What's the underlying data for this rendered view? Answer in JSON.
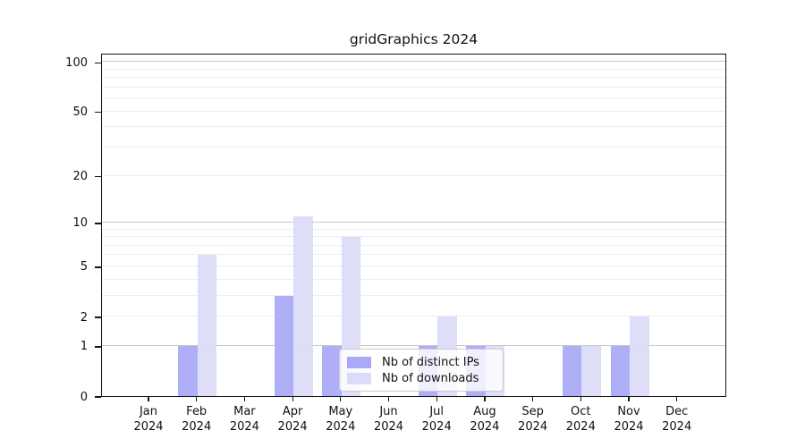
{
  "title": "gridGraphics 2024",
  "colors": {
    "distinct_ips_bar": "#a9a9f7",
    "downloads_bar": "#dcdcf9",
    "grid_major": "#c8c8c8",
    "grid_minor": "#ededed",
    "axis": "#151515",
    "legend_border": "#cccccc"
  },
  "chart_data": {
    "type": "bar",
    "title": "gridGraphics 2024",
    "xlabel": "",
    "ylabel": "",
    "categories": [
      "Jan 2024",
      "Feb 2024",
      "Mar 2024",
      "Apr 2024",
      "May 2024",
      "Jun 2024",
      "Jul 2024",
      "Aug 2024",
      "Sep 2024",
      "Oct 2024",
      "Nov 2024",
      "Dec 2024"
    ],
    "series": [
      {
        "name": "Nb of distinct IPs",
        "color": "#a9a9f7",
        "values": [
          0,
          1,
          0,
          3,
          1,
          0,
          1,
          1,
          0,
          1,
          1,
          0
        ]
      },
      {
        "name": "Nb of downloads",
        "color": "#dcdcf9",
        "values": [
          0,
          6,
          0,
          11,
          8,
          0,
          2,
          1,
          0,
          1,
          2,
          0
        ]
      }
    ],
    "y_axis": {
      "scale": "log10(value+1)",
      "tick_labels": [
        0,
        1,
        2,
        5,
        10,
        20,
        50,
        100
      ],
      "major_gridlines": [
        1,
        10,
        100
      ],
      "minor_gridlines": [
        2,
        3,
        4,
        5,
        6,
        7,
        8,
        9,
        20,
        30,
        40,
        50,
        60,
        70,
        80,
        90
      ],
      "ylim": [
        0,
        113
      ]
    },
    "grid": true,
    "legend": {
      "position": "lower-center",
      "entries": [
        "Nb of distinct IPs",
        "Nb of downloads"
      ]
    }
  }
}
